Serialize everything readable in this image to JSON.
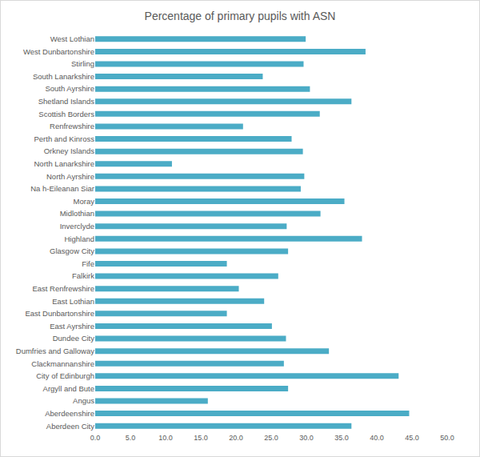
{
  "chart_data": {
    "type": "bar",
    "orientation": "horizontal",
    "title": "Percentage of primary pupils with ASN",
    "categories": [
      "Aberdeen City",
      "Aberdeenshire",
      "Angus",
      "Argyll and Bute",
      "City of Edinburgh",
      "Clackmannanshire",
      "Dumfries and Galloway",
      "Dundee City",
      "East Ayrshire",
      "East Dunbartonshire",
      "East Lothian",
      "East Renfrewshire",
      "Falkirk",
      "Fife",
      "Glasgow City",
      "Highland",
      "Inverclyde",
      "Midlothian",
      "Moray",
      "Na h-Eileanan Siar",
      "North Ayrshire",
      "North Lanarkshire",
      "Orkney Islands",
      "Perth and Kinross",
      "Renfrewshire",
      "Scottish Borders",
      "Shetland Islands",
      "South Ayrshire",
      "South Lanarkshire",
      "Stirling",
      "West Dunbartonshire",
      "West Lothian"
    ],
    "values": [
      36.4,
      44.6,
      16.0,
      27.4,
      43.1,
      26.8,
      33.2,
      27.1,
      25.1,
      18.7,
      24.0,
      20.4,
      26.0,
      18.7,
      27.4,
      37.9,
      27.2,
      32.0,
      35.4,
      29.2,
      29.7,
      10.9,
      29.5,
      27.9,
      21.0,
      31.9,
      36.4,
      30.5,
      23.8,
      29.6,
      38.4,
      29.9
    ],
    "color": "#4bacc6",
    "xlim": [
      0,
      50
    ],
    "xticks": [
      {
        "value": 0,
        "label": "0.0"
      },
      {
        "value": 5,
        "label": "5.0"
      },
      {
        "value": 10,
        "label": "10.0"
      },
      {
        "value": 15,
        "label": "15.0"
      },
      {
        "value": 20,
        "label": "20.0"
      },
      {
        "value": 25,
        "label": "25.0"
      },
      {
        "value": 30,
        "label": "30.0"
      },
      {
        "value": 35,
        "label": "35.0"
      },
      {
        "value": 40,
        "label": "40.0"
      },
      {
        "value": 45,
        "label": "45.0"
      },
      {
        "value": 50,
        "label": "50.0"
      }
    ],
    "grid": false
  }
}
